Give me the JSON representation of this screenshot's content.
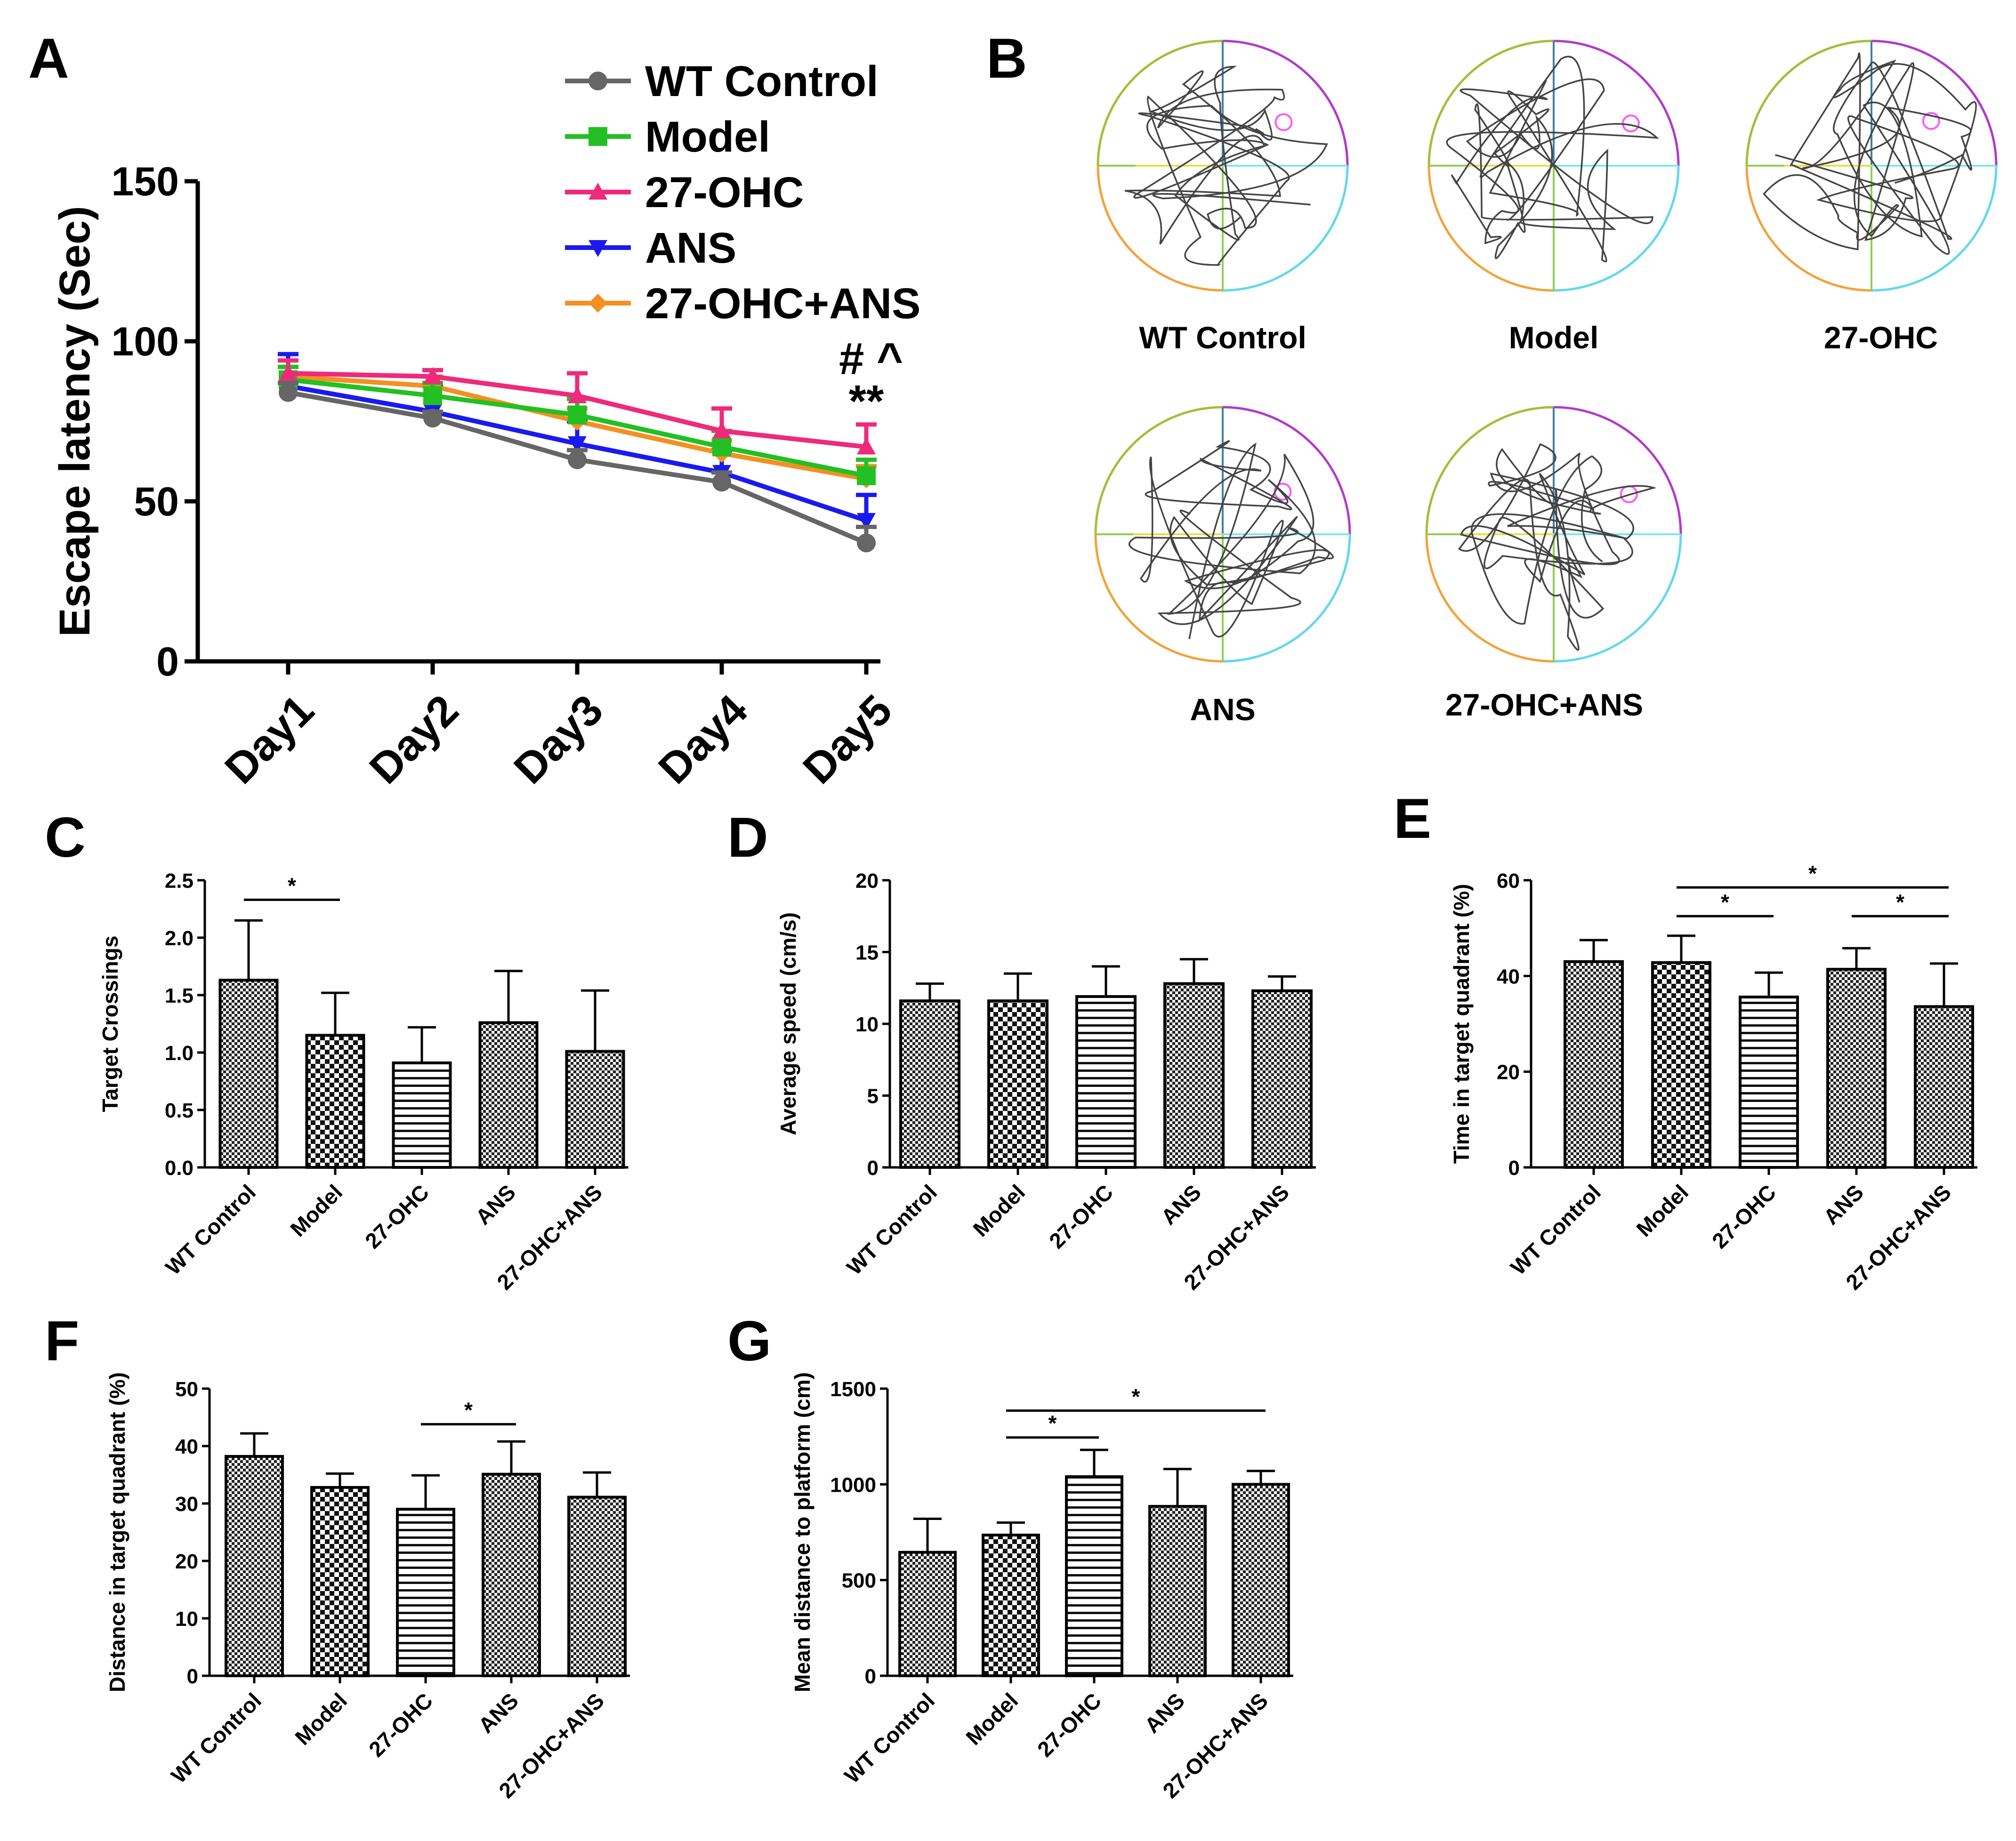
{
  "panels": {
    "A": {
      "letter": "A"
    },
    "B": {
      "letter": "B",
      "maze_labels": [
        "WT Control",
        "Model",
        "27-OHC",
        "ANS",
        "27-OHC+ANS"
      ]
    },
    "C": {
      "letter": "C"
    },
    "D": {
      "letter": "D"
    },
    "E": {
      "letter": "E"
    },
    "F": {
      "letter": "F"
    },
    "G": {
      "letter": "G"
    }
  },
  "colors": {
    "WT Control": "#666666",
    "Model": "#22c022",
    "27-OHC": "#ee2a7b",
    "ANS": "#1a1aee",
    "27-OHC+ANS": "#f39020"
  },
  "chart_data": [
    {
      "id": "A",
      "type": "line",
      "categories": [
        "Day1",
        "Day2",
        "Day3",
        "Day4",
        "Day5"
      ],
      "ylabel": "Escape latency (Sec)",
      "ylim": [
        0,
        150
      ],
      "yticks": [
        0,
        50,
        100,
        150
      ],
      "series": [
        {
          "name": "WT Control",
          "values": [
            84,
            76,
            63,
            56,
            37
          ],
          "err": [
            3,
            2,
            3,
            3,
            5
          ],
          "marker": "circle"
        },
        {
          "name": "Model",
          "values": [
            88,
            83,
            77,
            67,
            58
          ],
          "err": [
            4,
            4,
            5,
            5,
            5
          ],
          "marker": "square"
        },
        {
          "name": "27-OHC",
          "values": [
            90,
            89,
            83,
            72,
            67
          ],
          "err": [
            4,
            2,
            7,
            7,
            7
          ],
          "marker": "triangle-up"
        },
        {
          "name": "ANS",
          "values": [
            86,
            78,
            68,
            59,
            44
          ],
          "err": [
            10,
            8,
            7,
            7,
            8
          ],
          "marker": "triangle-down"
        },
        {
          "name": "27-OHC+ANS",
          "values": [
            89,
            86,
            75,
            65,
            57
          ],
          "err": [
            3,
            3,
            4,
            4,
            4
          ],
          "marker": "diamond"
        }
      ],
      "annotations": [
        "# ^",
        "**"
      ]
    },
    {
      "id": "C",
      "type": "bar",
      "categories": [
        "WT Control",
        "Model",
        "27-OHC",
        "ANS",
        "27-OHC+ANS"
      ],
      "values": [
        1.63,
        1.15,
        0.91,
        1.26,
        1.01
      ],
      "err": [
        0.52,
        0.37,
        0.31,
        0.45,
        0.53
      ],
      "patterns": [
        "checker",
        "checker-big",
        "hlines",
        "checker",
        "checker"
      ],
      "ylabel": "Target Crossings",
      "ylim": [
        0,
        2.5
      ],
      "yticks": [
        "0.0",
        "0.5",
        "1.0",
        "1.5",
        "2.0",
        "2.5"
      ],
      "sig": [
        {
          "from": 0,
          "to": 1,
          "level": 2.33,
          "label": "*"
        }
      ]
    },
    {
      "id": "D",
      "type": "bar",
      "categories": [
        "WT Control",
        "Model",
        "27-OHC",
        "ANS",
        "27-OHC+ANS"
      ],
      "values": [
        11.6,
        11.6,
        11.9,
        12.8,
        12.3
      ],
      "err": [
        1.2,
        1.9,
        2.1,
        1.7,
        1.0
      ],
      "patterns": [
        "checker",
        "checker-big",
        "hlines",
        "checker",
        "checker"
      ],
      "ylabel": "Average speed (cm/s)",
      "ylim": [
        0,
        20
      ],
      "yticks": [
        "0",
        "5",
        "10",
        "15",
        "20"
      ],
      "sig": []
    },
    {
      "id": "E",
      "type": "bar",
      "categories": [
        "WT Control",
        "Model",
        "27-OHC",
        "ANS",
        "27-OHC+ANS"
      ],
      "values": [
        43,
        42.8,
        35.6,
        41.4,
        33.6
      ],
      "err": [
        4.5,
        5.6,
        5.1,
        4.4,
        9.0
      ],
      "patterns": [
        "checker",
        "checker-big",
        "hlines",
        "checker",
        "checker"
      ],
      "ylabel": "Time in target quadrant (%)",
      "ylim": [
        0,
        60
      ],
      "yticks": [
        "0",
        "20",
        "40",
        "60"
      ],
      "sig": [
        {
          "from": 1,
          "to": 4,
          "level": 58.5,
          "label": "*"
        },
        {
          "from": 1,
          "to": 2,
          "level": 52.5,
          "label": "*"
        },
        {
          "from": 3,
          "to": 4,
          "level": 52.5,
          "label": "*"
        }
      ]
    },
    {
      "id": "F",
      "type": "bar",
      "categories": [
        "WT Control",
        "Model",
        "27-OHC",
        "ANS",
        "27-OHC+ANS"
      ],
      "values": [
        38.2,
        32.8,
        29.0,
        35.1,
        31.1
      ],
      "err": [
        4.0,
        2.4,
        5.9,
        5.7,
        4.3
      ],
      "patterns": [
        "checker",
        "checker-big",
        "hlines",
        "checker",
        "checker"
      ],
      "ylabel": "Distance in target quadrant (%)",
      "ylim": [
        0,
        50
      ],
      "yticks": [
        "0",
        "10",
        "20",
        "30",
        "40",
        "50"
      ],
      "sig": [
        {
          "from": 2,
          "to": 3,
          "level": 43.8,
          "label": "*"
        }
      ]
    },
    {
      "id": "G",
      "type": "bar",
      "categories": [
        "WT Control",
        "Model",
        "27-OHC",
        "ANS",
        "27-OHC+ANS"
      ],
      "values": [
        645,
        735,
        1040,
        885,
        1000
      ],
      "err": [
        175,
        65,
        140,
        195,
        70
      ],
      "patterns": [
        "checker",
        "checker-big",
        "hlines",
        "checker",
        "checker"
      ],
      "ylabel": "Mean distance to platform (cm)",
      "ylim": [
        0,
        1500
      ],
      "yticks": [
        "0",
        "500",
        "1000",
        "1500"
      ],
      "sig": [
        {
          "from": 1,
          "to": 4,
          "level": 1385,
          "label": "*"
        },
        {
          "from": 1,
          "to": 2,
          "level": 1245,
          "label": "*"
        }
      ]
    }
  ]
}
